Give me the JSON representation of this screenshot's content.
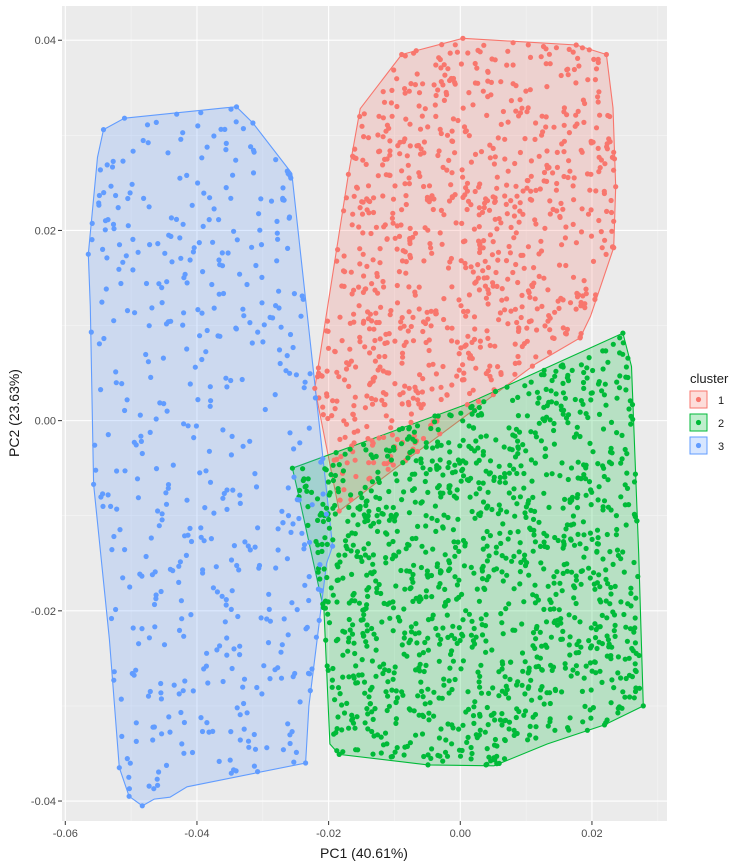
{
  "chart_data": {
    "type": "scatter",
    "title": "",
    "xlabel": "PC1 (40.61%)",
    "ylabel": "PC2 (23.63%)",
    "xlim": [
      -0.0605,
      0.0314
    ],
    "ylim": [
      -0.0421,
      0.0436
    ],
    "x_ticks": [
      -0.06,
      -0.04,
      -0.02,
      0.0,
      0.02
    ],
    "x_tick_labels": [
      "-0.06",
      "-0.04",
      "-0.02",
      "0.00",
      "0.02"
    ],
    "y_ticks": [
      -0.04,
      -0.02,
      0.0,
      0.02,
      0.04
    ],
    "y_tick_labels": [
      "-0.04",
      "-0.02",
      "0.00",
      "0.02",
      "0.04"
    ],
    "grid": true,
    "background": "#ebebeb",
    "legend": {
      "title": "cluster",
      "position": "right"
    },
    "series": [
      {
        "name": "1",
        "color": "#F8766D",
        "n_points": 900,
        "hull": [
          [
            -0.0089,
            0.0385
          ],
          [
            0.0004,
            0.0402
          ],
          [
            0.0176,
            0.0395
          ],
          [
            0.0222,
            0.0385
          ],
          [
            0.0232,
            0.0329
          ],
          [
            0.0236,
            0.0246
          ],
          [
            0.0233,
            0.0182
          ],
          [
            0.0198,
            0.011
          ],
          [
            0.0182,
            0.0087
          ],
          [
            0.0115,
            0.006
          ],
          [
            -0.0083,
            -0.0042
          ],
          [
            -0.0184,
            -0.0095
          ],
          [
            -0.0221,
            0.0034
          ],
          [
            -0.017,
            0.0259
          ],
          [
            -0.0152,
            0.0328
          ],
          [
            -0.0089,
            0.0385
          ]
        ],
        "points": [
          [
            -0.0184,
            -0.0095
          ],
          [
            -0.0221,
            0.0034
          ],
          [
            -0.017,
            0.0259
          ],
          [
            -0.0089,
            0.0385
          ],
          [
            0.0004,
            0.0402
          ],
          [
            0.0176,
            0.0395
          ],
          [
            0.0222,
            0.0385
          ],
          [
            0.0236,
            0.0246
          ],
          [
            0.0233,
            0.0182
          ],
          [
            0.0182,
            0.0087
          ],
          [
            -0.0083,
            -0.0042
          ]
        ]
      },
      {
        "name": "2",
        "color": "#00BA38",
        "n_points": 1300,
        "hull": [
          [
            -0.0255,
            -0.005
          ],
          [
            0.0005,
            0.0016
          ],
          [
            0.0247,
            0.0092
          ],
          [
            0.026,
            0.0057
          ],
          [
            0.0271,
            -0.014
          ],
          [
            0.0278,
            -0.03
          ],
          [
            0.0219,
            -0.032
          ],
          [
            0.0132,
            -0.034
          ],
          [
            0.0051,
            -0.0363
          ],
          [
            -0.0049,
            -0.0362
          ],
          [
            -0.0184,
            -0.0351
          ],
          [
            -0.0198,
            -0.034
          ],
          [
            -0.0207,
            -0.02
          ],
          [
            -0.0245,
            -0.008
          ],
          [
            -0.0255,
            -0.005
          ]
        ],
        "points": [
          [
            -0.0255,
            -0.005
          ],
          [
            0.0247,
            0.0092
          ],
          [
            0.0278,
            -0.03
          ],
          [
            0.0219,
            -0.032
          ],
          [
            0.0039,
            -0.0362
          ],
          [
            -0.0049,
            -0.0362
          ],
          [
            -0.0184,
            -0.0351
          ],
          [
            -0.0245,
            -0.008
          ]
        ]
      },
      {
        "name": "3",
        "color": "#619CFF",
        "n_points": 500,
        "hull": [
          [
            -0.0542,
            0.0306
          ],
          [
            -0.051,
            0.0318
          ],
          [
            -0.0357,
            0.0329
          ],
          [
            -0.034,
            0.033
          ],
          [
            -0.0315,
            0.0313
          ],
          [
            -0.0256,
            0.026
          ],
          [
            -0.0194,
            -0.0132
          ],
          [
            -0.0203,
            -0.015
          ],
          [
            -0.023,
            -0.03
          ],
          [
            -0.0235,
            -0.036
          ],
          [
            -0.0415,
            -0.0385
          ],
          [
            -0.0441,
            -0.0396
          ],
          [
            -0.0465,
            -0.0398
          ],
          [
            -0.0483,
            -0.0405
          ],
          [
            -0.0503,
            -0.0395
          ],
          [
            -0.0518,
            -0.0365
          ],
          [
            -0.0533,
            -0.023
          ],
          [
            -0.0557,
            -0.0067
          ],
          [
            -0.0562,
            0.012
          ],
          [
            -0.0565,
            0.0175
          ],
          [
            -0.0551,
            0.0277
          ],
          [
            -0.0542,
            0.0306
          ]
        ],
        "points": [
          [
            -0.0542,
            0.0306
          ],
          [
            -0.051,
            0.0318
          ],
          [
            -0.034,
            0.033
          ],
          [
            -0.0315,
            0.0313
          ],
          [
            -0.0194,
            -0.0132
          ],
          [
            -0.0235,
            -0.036
          ],
          [
            -0.0483,
            -0.0405
          ],
          [
            -0.0503,
            -0.0395
          ],
          [
            -0.0518,
            -0.0365
          ],
          [
            -0.0557,
            -0.0067
          ],
          [
            -0.0565,
            0.0175
          ]
        ]
      }
    ]
  }
}
